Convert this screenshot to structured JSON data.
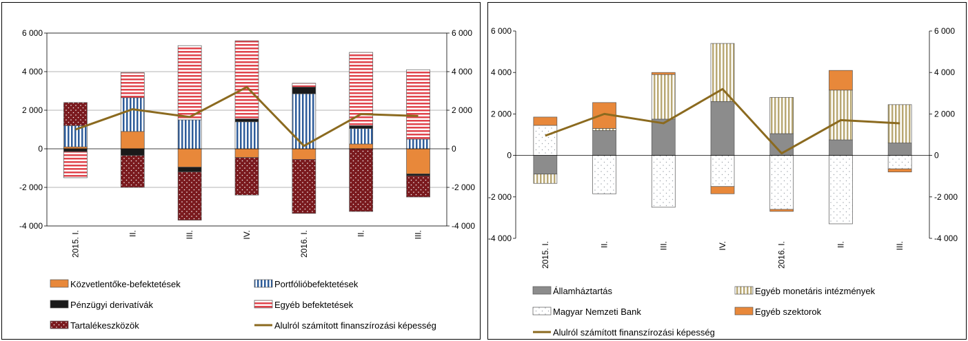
{
  "chart_data": [
    {
      "type": "bar",
      "stacked": true,
      "categories": [
        "2015. I.",
        "II.",
        "III.",
        "IV.",
        "2016. I.",
        "II.",
        "III."
      ],
      "ylim": [
        -4000,
        6000
      ],
      "yticks": [
        -4000,
        -2000,
        0,
        2000,
        4000,
        6000
      ],
      "tick_labels": [
        "-4 000",
        "-2 000",
        "0",
        "2 000",
        "4 000",
        "6 000"
      ],
      "secondary_axis": true,
      "grid": true,
      "legend_position": "bottom",
      "series": [
        {
          "name": "Közvetlentőke-befektetések",
          "kind": "bar",
          "color": "#E8883A",
          "pattern": "solid",
          "values": [
            100,
            900,
            -950,
            -450,
            -550,
            250,
            -1300
          ]
        },
        {
          "name": "Portfólióbefektetések",
          "kind": "bar",
          "color": "#2E5C9A",
          "pattern": "vstripes",
          "values": [
            1100,
            1750,
            1500,
            1400,
            2850,
            800,
            500
          ]
        },
        {
          "name": "Pénzügyi derivatívák",
          "kind": "bar",
          "color": "#1a1a1a",
          "pattern": "solid",
          "values": [
            -150,
            -350,
            -250,
            150,
            350,
            150,
            -100
          ]
        },
        {
          "name": "Egyéb befektetések",
          "kind": "bar",
          "color": "#E0434B",
          "pattern": "hstripes",
          "values": [
            -1350,
            1300,
            3850,
            4050,
            200,
            3800,
            3600
          ]
        },
        {
          "name": "Tartalékeszközök",
          "kind": "bar",
          "color": "#7A1A1E",
          "pattern": "dots",
          "values": [
            1200,
            -1650,
            -2500,
            -1950,
            -2800,
            -3250,
            -1100
          ]
        },
        {
          "name": "Alulról számított finanszírozási képesség",
          "kind": "line",
          "color": "#8B6A1F",
          "values": [
            1000,
            2050,
            1650,
            3200,
            150,
            1800,
            1700
          ]
        }
      ]
    },
    {
      "type": "bar",
      "stacked": true,
      "categories": [
        "2015. I.",
        "II.",
        "III.",
        "IV.",
        "2016. I.",
        "II.",
        "III."
      ],
      "ylim": [
        -4000,
        6000
      ],
      "yticks": [
        -4000,
        -2000,
        0,
        2000,
        4000,
        6000
      ],
      "tick_labels": [
        "-4 000",
        "-2 000",
        "0",
        "2 000",
        "4 000",
        "6 000"
      ],
      "secondary_axis": true,
      "grid": false,
      "legend_position": "bottom",
      "series": [
        {
          "name": "Államháztartás",
          "kind": "bar",
          "color": "#8C8C8C",
          "pattern": "solid",
          "values": [
            -900,
            1200,
            1750,
            2600,
            1050,
            750,
            600
          ]
        },
        {
          "name": "Egyéb monetáris intézmények",
          "kind": "bar",
          "color": "#B9A874",
          "pattern": "vstripes",
          "values": [
            -450,
            100,
            2150,
            2800,
            1750,
            2400,
            1850
          ]
        },
        {
          "name": "Magyar Nemzeti Bank",
          "kind": "bar",
          "color": "#9AA0A8",
          "pattern": "dots",
          "values": [
            1450,
            -1850,
            -2500,
            -1500,
            -2600,
            -3300,
            -650
          ]
        },
        {
          "name": "Egyéb szektorok",
          "kind": "bar",
          "color": "#E8883A",
          "pattern": "solid",
          "values": [
            400,
            1250,
            100,
            -350,
            -100,
            950,
            -150
          ]
        },
        {
          "name": "Alulról számított finanszírozási képesség",
          "kind": "line",
          "color": "#8B6A1F",
          "values": [
            950,
            2000,
            1550,
            3200,
            100,
            1700,
            1550
          ]
        }
      ]
    }
  ]
}
